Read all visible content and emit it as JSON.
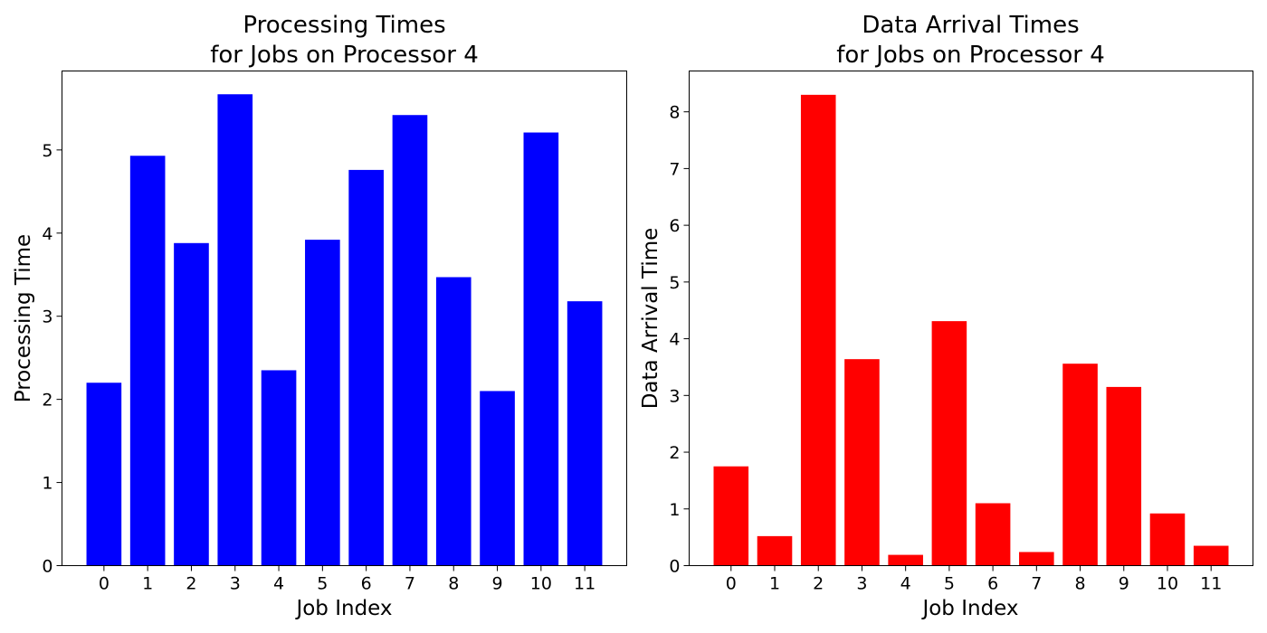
{
  "chart_data": [
    {
      "type": "bar",
      "title_lines": [
        "Processing Times",
        "for Jobs on Processor 4"
      ],
      "xlabel": "Job Index",
      "ylabel": "Processing Time",
      "categories": [
        "0",
        "1",
        "2",
        "3",
        "4",
        "5",
        "6",
        "7",
        "8",
        "9",
        "10",
        "11"
      ],
      "values": [
        2.2,
        4.93,
        3.88,
        5.67,
        2.35,
        3.92,
        4.76,
        5.42,
        3.47,
        2.1,
        5.21,
        3.18
      ],
      "color": "#0000ff",
      "ylim": [
        0,
        5.95
      ],
      "yticks": [
        0,
        1,
        2,
        3,
        4,
        5
      ],
      "grid": false,
      "legend": false
    },
    {
      "type": "bar",
      "title_lines": [
        "Data Arrival Times",
        "for Jobs on Processor 4"
      ],
      "xlabel": "Job Index",
      "ylabel": "Data Arrival Time",
      "categories": [
        "0",
        "1",
        "2",
        "3",
        "4",
        "5",
        "6",
        "7",
        "8",
        "9",
        "10",
        "11"
      ],
      "values": [
        1.75,
        0.52,
        8.3,
        3.64,
        0.19,
        4.31,
        1.1,
        0.24,
        3.56,
        3.15,
        0.92,
        0.35
      ],
      "color": "#ff0000",
      "ylim": [
        0,
        8.72
      ],
      "yticks": [
        0,
        1,
        2,
        3,
        4,
        5,
        6,
        7,
        8
      ],
      "grid": false,
      "legend": false
    }
  ]
}
